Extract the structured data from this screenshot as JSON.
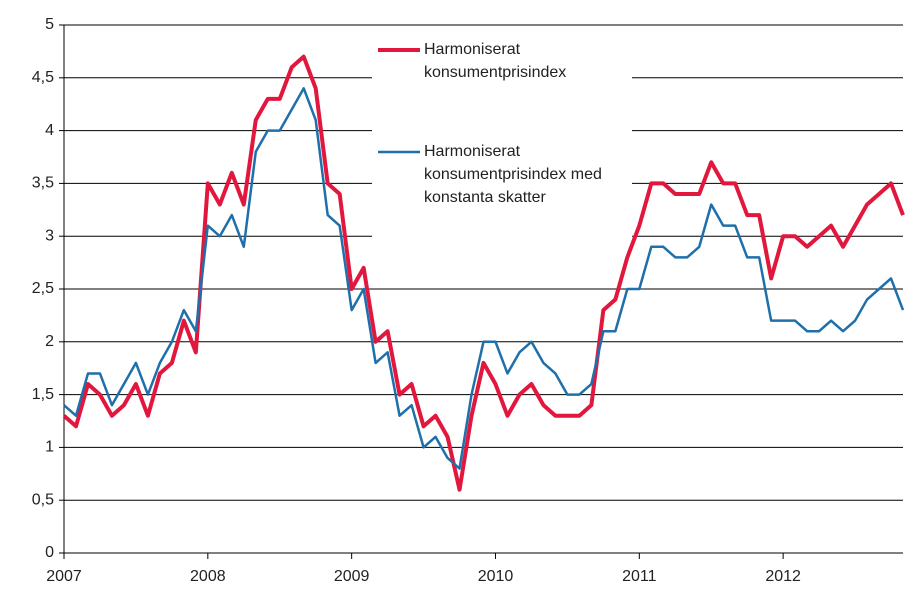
{
  "chart_data": {
    "type": "line",
    "categories": [
      "2007",
      null,
      null,
      null,
      null,
      null,
      null,
      null,
      null,
      null,
      null,
      null,
      "2008",
      null,
      null,
      null,
      null,
      null,
      null,
      null,
      null,
      null,
      null,
      null,
      "2009",
      null,
      null,
      null,
      null,
      null,
      null,
      null,
      null,
      null,
      null,
      null,
      "2010",
      null,
      null,
      null,
      null,
      null,
      null,
      null,
      null,
      null,
      null,
      null,
      "2011",
      null,
      null,
      null,
      null,
      null,
      null,
      null,
      null,
      null,
      null,
      null,
      "2012",
      null,
      null,
      null,
      null,
      null,
      null,
      null,
      null,
      null,
      null
    ],
    "series": [
      {
        "name": "Harmoniserat konsumentprisindex",
        "color": "#e2173d",
        "width": 4,
        "values": [
          1.3,
          1.2,
          1.6,
          1.5,
          1.3,
          1.4,
          1.6,
          1.3,
          1.7,
          1.8,
          2.2,
          1.9,
          3.5,
          3.3,
          3.6,
          3.3,
          4.1,
          4.3,
          4.3,
          4.6,
          4.7,
          4.4,
          3.5,
          3.4,
          2.5,
          2.7,
          2.0,
          2.1,
          1.5,
          1.6,
          1.2,
          1.3,
          1.1,
          0.6,
          1.3,
          1.8,
          1.6,
          1.3,
          1.5,
          1.6,
          1.4,
          1.3,
          1.3,
          1.3,
          1.4,
          2.3,
          2.4,
          2.8,
          3.1,
          3.5,
          3.5,
          3.4,
          3.4,
          3.4,
          3.7,
          3.5,
          3.5,
          3.2,
          3.2,
          2.6,
          3.0,
          3.0,
          2.9,
          3.0,
          3.1,
          2.9,
          3.1,
          3.3,
          3.4,
          3.5,
          3.2
        ]
      },
      {
        "name": "Harmoniserat konsumentprisindex med konstanta skatter",
        "color": "#1f6fab",
        "width": 2.5,
        "values": [
          1.4,
          1.3,
          1.7,
          1.7,
          1.4,
          1.6,
          1.8,
          1.5,
          1.8,
          2.0,
          2.3,
          2.1,
          3.1,
          3.0,
          3.2,
          2.9,
          3.8,
          4.0,
          4.0,
          4.2,
          4.4,
          4.1,
          3.2,
          3.1,
          2.3,
          2.5,
          1.8,
          1.9,
          1.3,
          1.4,
          1.0,
          1.1,
          0.9,
          0.8,
          1.5,
          2.0,
          2.0,
          1.7,
          1.9,
          2.0,
          1.8,
          1.7,
          1.5,
          1.5,
          1.6,
          2.1,
          2.1,
          2.5,
          2.5,
          2.9,
          2.9,
          2.8,
          2.8,
          2.9,
          3.3,
          3.1,
          3.1,
          2.8,
          2.8,
          2.2,
          2.2,
          2.2,
          2.1,
          2.1,
          2.2,
          2.1,
          2.2,
          2.4,
          2.5,
          2.6,
          2.3
        ]
      }
    ],
    "ylim": [
      0,
      5
    ],
    "yticks": [
      0,
      {
        "value": 0.5,
        "label": "0,5"
      },
      1,
      {
        "value": 1.5,
        "label": "1,5"
      },
      2,
      {
        "value": 2.5,
        "label": "2,5"
      },
      3,
      {
        "value": 3.5,
        "label": "3,5"
      },
      4,
      {
        "value": 4.5,
        "label": "4,5"
      },
      5
    ],
    "grid": true
  }
}
